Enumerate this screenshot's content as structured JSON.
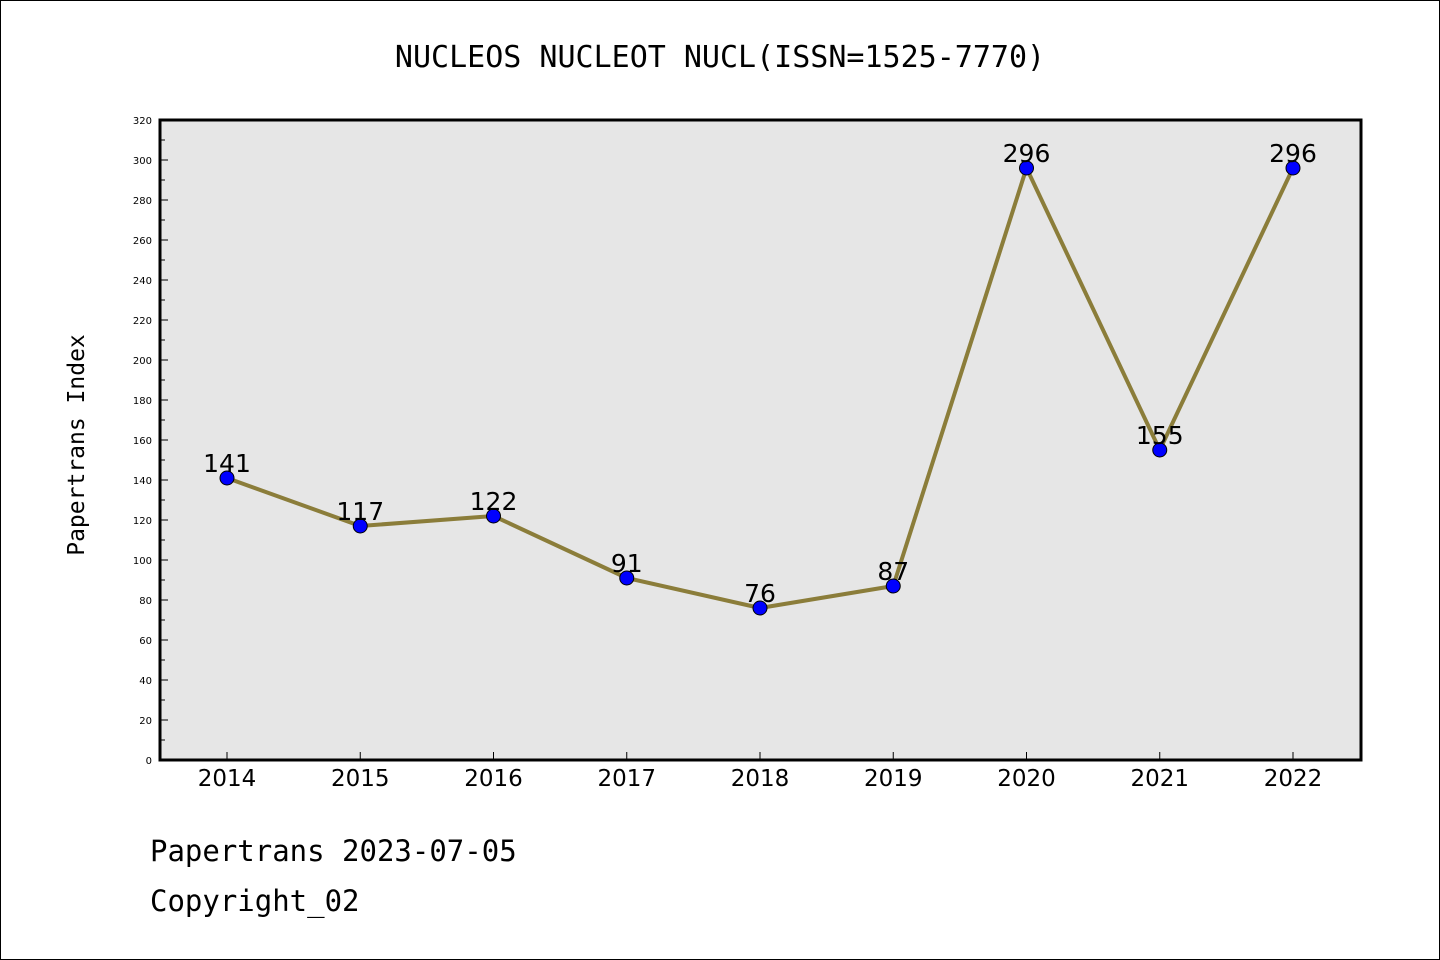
{
  "chart_data": {
    "type": "line",
    "title": "NUCLEOS NUCLEOT NUCL(ISSN=1525-7770)",
    "xlabel": "",
    "ylabel": "Papertrans Index",
    "categories": [
      "2014",
      "2015",
      "2016",
      "2017",
      "2018",
      "2019",
      "2020",
      "2021",
      "2022"
    ],
    "series": [
      {
        "values": [
          141,
          117,
          122,
          91,
          76,
          87,
          296,
          155,
          296
        ]
      }
    ],
    "data_labels": [
      "141",
      "117",
      "122",
      "91",
      "76",
      "87",
      "296",
      "155",
      "296"
    ],
    "ylim": [
      0,
      320
    ],
    "yticks": [
      "0",
      "20",
      "40",
      "60",
      "80",
      "100",
      "120",
      "140",
      "160",
      "180",
      "200",
      "220",
      "240",
      "260",
      "280",
      "300",
      "320"
    ],
    "grid": false,
    "legend": "none",
    "colors": {
      "line": "#8b7d3a",
      "marker": "#0000ff",
      "plot_bg": "#e6e6e6"
    }
  },
  "footer": {
    "line1": "Papertrans 2023-07-05",
    "line2": "Copyright_02"
  }
}
